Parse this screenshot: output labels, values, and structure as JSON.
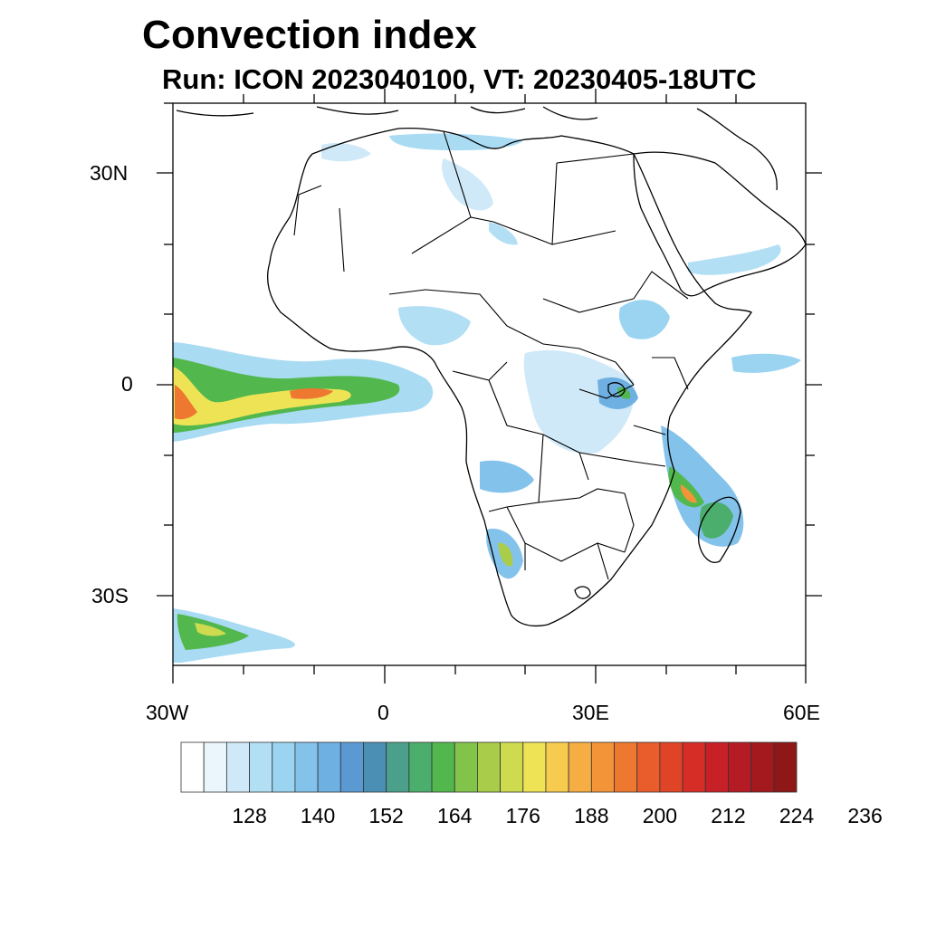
{
  "title": "Convection index",
  "subtitle": "Run: ICON 2023040100,  VT: 20230405-18UTC",
  "map": {
    "lon_range": [
      -30,
      60
    ],
    "lat_range": [
      -40,
      40
    ],
    "lat_labels": [
      "30N",
      "0",
      "30S"
    ],
    "lon_labels": [
      "30W",
      "0",
      "30E",
      "60E"
    ]
  },
  "colorbar": {
    "colors": [
      "#ffffff",
      "#eaf5fc",
      "#cfe9f8",
      "#b3dff5",
      "#9ad4f1",
      "#83c2ea",
      "#6fb0e2",
      "#5b99d2",
      "#4b8fb4",
      "#4aa08a",
      "#4bae6c",
      "#52b84e",
      "#82c34a",
      "#a9cc4b",
      "#cfdb4e",
      "#eee355",
      "#f7cb4e",
      "#f5ad44",
      "#f39439",
      "#ef7830",
      "#e85d2b",
      "#e04427",
      "#d72d27",
      "#c72027",
      "#b51b25",
      "#a3191e",
      "#8e1717"
    ],
    "tick_labels": [
      "128",
      "140",
      "152",
      "164",
      "176",
      "188",
      "200",
      "212",
      "224",
      "236"
    ]
  }
}
